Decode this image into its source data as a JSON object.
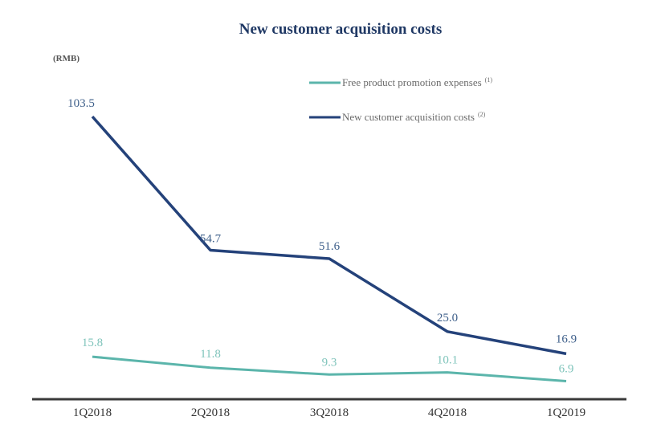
{
  "chart_data": {
    "type": "line",
    "title": "New customer acquisition costs",
    "ylabel": "(RMB)",
    "xlabel": "",
    "categories": [
      "1Q2018",
      "2Q2018",
      "3Q2018",
      "4Q2018",
      "1Q2019"
    ],
    "ylim": [
      0,
      110
    ],
    "grid": false,
    "legend_position": "top-right",
    "series": [
      {
        "name": "Free product promotion expenses",
        "footnote": "(1)",
        "color": "#5bb5ab",
        "label_color": "#7fc4bb",
        "values": [
          15.8,
          11.8,
          9.3,
          10.1,
          6.9
        ],
        "labels": [
          "15.8",
          "11.8",
          "9.3",
          "10.1",
          "6.9"
        ]
      },
      {
        "name": "New customer acquisition costs",
        "footnote": "(2)",
        "color": "#24427a",
        "label_color": "#3e5f8a",
        "values": [
          103.5,
          54.7,
          51.6,
          25.0,
          16.9
        ],
        "labels": [
          "103.5",
          "54.7",
          "51.6",
          "25.0",
          "16.9"
        ]
      }
    ]
  }
}
